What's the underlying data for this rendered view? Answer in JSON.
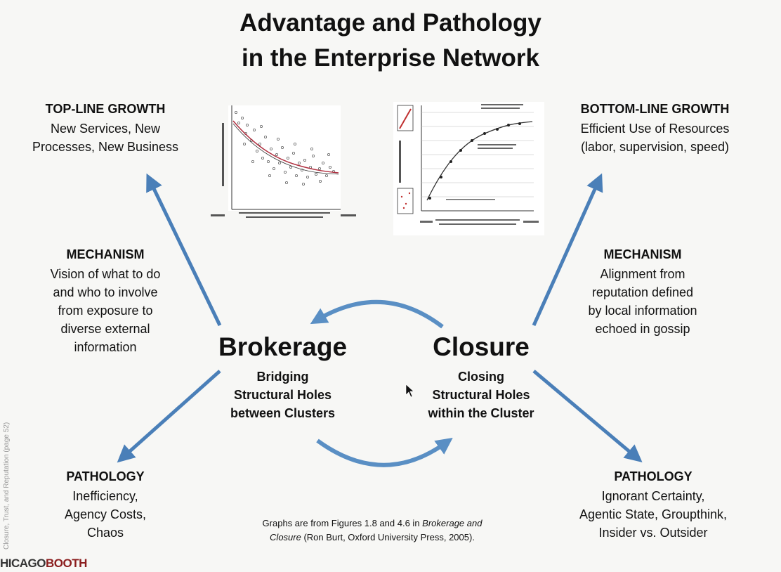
{
  "title": {
    "line1": "Advantage and Pathology",
    "line2": "in the Enterprise Network"
  },
  "top_left": {
    "heading": "TOP-LINE GROWTH",
    "text": "New Services, New\nProcesses, New Business"
  },
  "top_right": {
    "heading": "BOTTOM-LINE GROWTH",
    "text": "Efficient Use of Resources\n(labor, supervision, speed)"
  },
  "mech_left": {
    "heading": "MECHANISM",
    "text": "Vision of what to do\nand who to involve\nfrom exposure to\ndiverse external\ninformation"
  },
  "mech_right": {
    "heading": "MECHANISM",
    "text": "Alignment from\nreputation defined\nby local information\nechoed in gossip"
  },
  "brokerage": {
    "title": "Brokerage",
    "text": "Bridging\nStructural Holes\nbetween Clusters"
  },
  "closure": {
    "title": "Closure",
    "text": "Closing\nStructural Holes\nwithin the Cluster"
  },
  "path_left": {
    "heading": "PATHOLOGY",
    "text": "Inefficiency,\nAgency Costs,\nChaos"
  },
  "path_right": {
    "heading": "PATHOLOGY",
    "text": "Ignorant Certainty,\nAgentic State, Groupthink,\nInsider vs. Outsider"
  },
  "footnote": {
    "pre": "Graphs are from Figures 1.8 and 4.6 in ",
    "em1": "Brokerage and",
    "em2": "Closure",
    "post": " (Ron Burt, Oxford University Press, 2005)."
  },
  "side_text": "Closure, Trust, and Reputation (page 52)",
  "logo": {
    "part1": "HICAGO",
    "part2": "BOOTH"
  },
  "colors": {
    "arrow": "#4a7fb8",
    "curve_red": "#b03040"
  }
}
